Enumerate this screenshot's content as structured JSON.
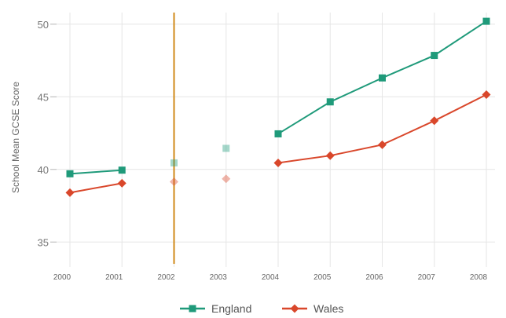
{
  "chart_data": {
    "type": "line",
    "ylabel": "School Mean GCSE Score",
    "xlabel": "",
    "categories": [
      "2000",
      "2001",
      "2002",
      "2003",
      "2004",
      "2005",
      "2006",
      "2007",
      "2008"
    ],
    "ylim": [
      33.5,
      50.8
    ],
    "yticks": [
      35,
      40,
      45,
      50
    ],
    "grid": true,
    "legend_position": "bottom",
    "reference_line": {
      "x": "2002",
      "color": "#d08a1a"
    },
    "series": [
      {
        "name": "England",
        "color": "#1f9a7a",
        "marker": "square",
        "values": [
          39.7,
          39.95,
          40.45,
          41.45,
          42.45,
          44.65,
          46.3,
          47.85,
          50.2
        ],
        "faded": [
          false,
          false,
          true,
          true,
          false,
          false,
          false,
          false,
          false
        ],
        "segments": [
          [
            0,
            1
          ],
          [
            4,
            8
          ]
        ]
      },
      {
        "name": "Wales",
        "color": "#d9472b",
        "marker": "diamond",
        "values": [
          38.4,
          39.05,
          39.15,
          39.35,
          40.45,
          40.95,
          41.7,
          43.35,
          45.15
        ],
        "faded": [
          false,
          false,
          true,
          true,
          false,
          false,
          false,
          false,
          false
        ],
        "segments": [
          [
            0,
            1
          ],
          [
            4,
            8
          ]
        ]
      }
    ]
  }
}
